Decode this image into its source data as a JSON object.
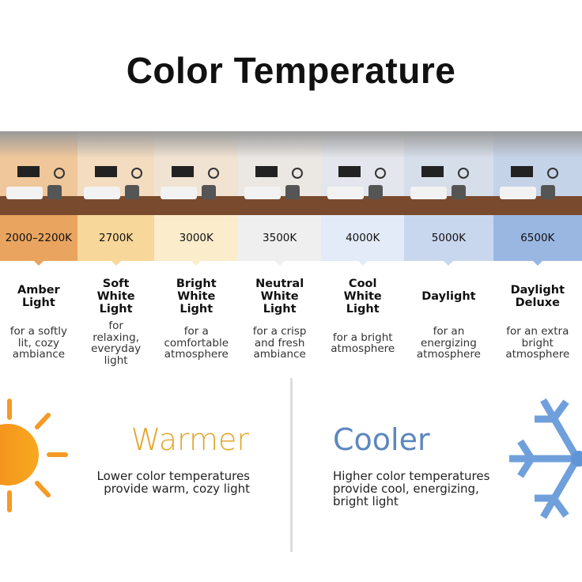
{
  "title": "Color Temperature",
  "types": [
    {
      "kelvin": "2000–2200K",
      "name": "Amber Light",
      "desc": "for a softly lit, cozy ambiance",
      "color": "#e9a45f",
      "tint": "#f0c79a"
    },
    {
      "kelvin": "2700K",
      "name": "Soft White Light",
      "desc": "for relaxing, everyday light",
      "color": "#f8d79a",
      "tint": "#f3dcc0"
    },
    {
      "kelvin": "3000K",
      "name": "Bright White Light",
      "desc": "for a comfortable atmosphere",
      "color": "#fbeccb",
      "tint": "#f1e3d2"
    },
    {
      "kelvin": "3500K",
      "name": "Neutral White Light",
      "desc": "for a crisp and fresh ambiance",
      "color": "#efefef",
      "tint": "#ebe7e3"
    },
    {
      "kelvin": "4000K",
      "name": "Cool White Light",
      "desc": "for a bright atmosphere",
      "color": "#e3ebf8",
      "tint": "#e3e6ec"
    },
    {
      "kelvin": "5000K",
      "name": "Daylight",
      "desc": "for an energizing atmosphere",
      "color": "#c9d7ee",
      "tint": "#d6deea"
    },
    {
      "kelvin": "6500K",
      "name": "Daylight Deluxe",
      "desc": "for an extra bright atmosphere",
      "color": "#9ab7e2",
      "tint": "#c5d3e8"
    }
  ],
  "warm": {
    "heading": "Warmer",
    "text": "Lower color temperatures provide warm, cozy light",
    "color": "#e2a52c",
    "icon": "sun-icon"
  },
  "cool": {
    "heading": "Cooler",
    "text": "Higher color temperatures provide cool, energizing, bright light",
    "color": "#5e87bf",
    "icon": "snowflake-icon"
  }
}
